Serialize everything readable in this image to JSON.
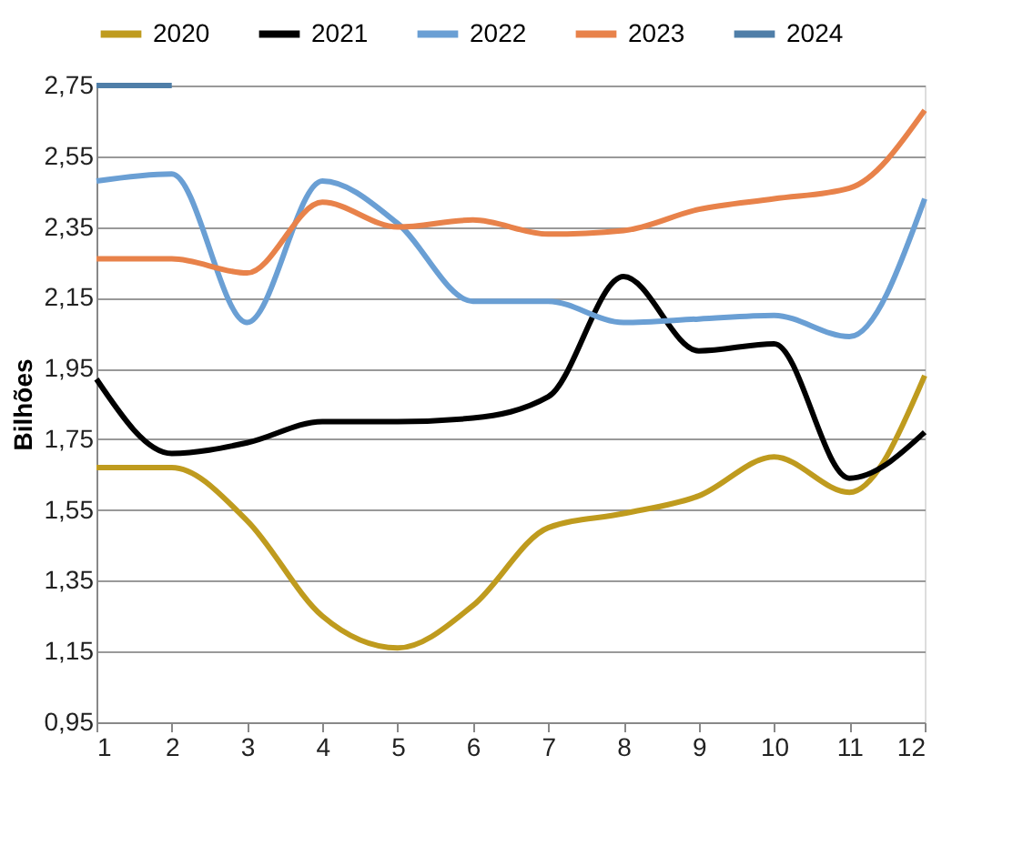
{
  "chart_data": {
    "type": "line",
    "ylabel": "Bilhões",
    "x": [
      1,
      2,
      3,
      4,
      5,
      6,
      7,
      8,
      9,
      10,
      11,
      12
    ],
    "xlim": [
      1,
      12
    ],
    "xticks": [
      1,
      2,
      3,
      4,
      5,
      6,
      7,
      8,
      9,
      10,
      11,
      12
    ],
    "ylim": [
      0.95,
      2.75
    ],
    "yticks": [
      {
        "value": 0.95,
        "label": "0,95"
      },
      {
        "value": 1.15,
        "label": "1,15"
      },
      {
        "value": 1.35,
        "label": "1,35"
      },
      {
        "value": 1.55,
        "label": "1,55"
      },
      {
        "value": 1.75,
        "label": "1,75"
      },
      {
        "value": 1.95,
        "label": "1,95"
      },
      {
        "value": 2.15,
        "label": "2,15"
      },
      {
        "value": 2.35,
        "label": "2,35"
      },
      {
        "value": 2.55,
        "label": "2,55"
      },
      {
        "value": 2.75,
        "label": "2,75"
      }
    ],
    "grid": "y",
    "legend": "top",
    "marker": "none",
    "line_style": "solid",
    "series": [
      {
        "name": "2020",
        "color": "#bf9b1e",
        "values": [
          1.67,
          1.67,
          1.52,
          1.25,
          1.16,
          1.28,
          1.5,
          1.54,
          1.59,
          1.7,
          1.6,
          1.93
        ]
      },
      {
        "name": "2021",
        "color": "#000000",
        "values": [
          1.92,
          1.71,
          1.74,
          1.8,
          1.8,
          1.81,
          1.87,
          2.21,
          2.0,
          2.02,
          1.64,
          1.77
        ]
      },
      {
        "name": "2022",
        "color": "#6a9fd4",
        "values": [
          2.48,
          2.5,
          2.08,
          2.48,
          2.36,
          2.14,
          2.14,
          2.08,
          2.09,
          2.1,
          2.04,
          2.43
        ]
      },
      {
        "name": "2023",
        "color": "#e8824a",
        "values": [
          2.26,
          2.26,
          2.22,
          2.42,
          2.35,
          2.37,
          2.33,
          2.34,
          2.4,
          2.43,
          2.46,
          2.68
        ]
      },
      {
        "name": "2024",
        "color": "#4f7ea8",
        "values": [
          2.75,
          2.75,
          null,
          null,
          null,
          null,
          null,
          null,
          null,
          null,
          null,
          null
        ]
      }
    ]
  }
}
